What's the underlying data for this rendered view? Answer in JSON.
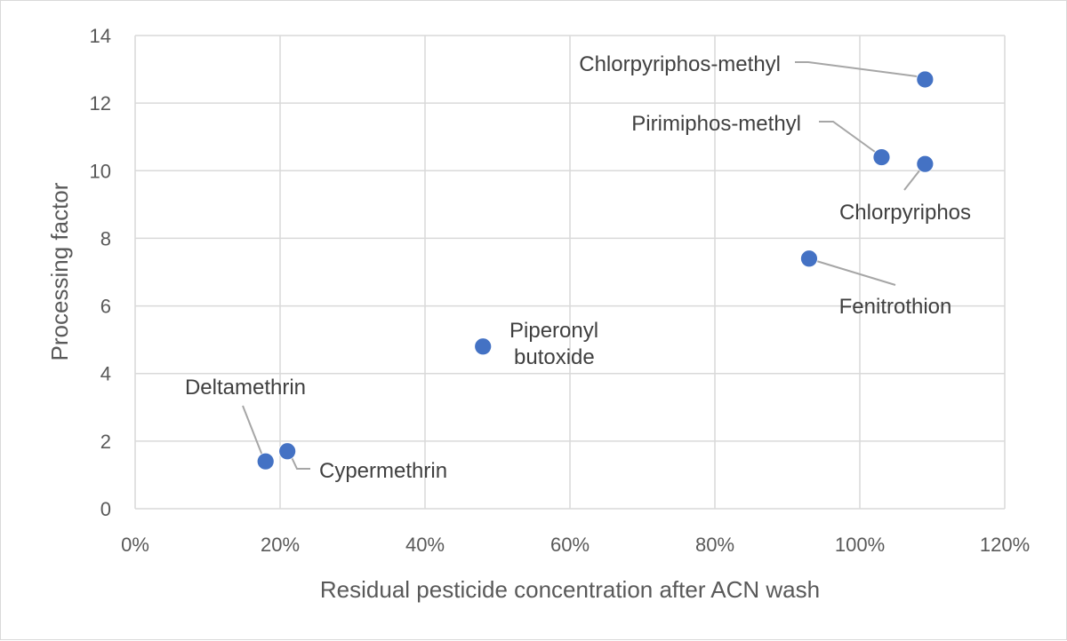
{
  "chart_data": {
    "type": "scatter",
    "xlabel": "Residual pesticide concentration after ACN wash",
    "ylabel": "Processing factor",
    "xlim": [
      0,
      1.2
    ],
    "ylim": [
      0,
      14
    ],
    "x_ticks": [
      0,
      0.2,
      0.4,
      0.6,
      0.8,
      1.0,
      1.2
    ],
    "x_tick_labels": [
      "0%",
      "20%",
      "40%",
      "60%",
      "80%",
      "100%",
      "120%"
    ],
    "y_ticks": [
      0,
      2,
      4,
      6,
      8,
      10,
      12,
      14
    ],
    "y_tick_labels": [
      "0",
      "2",
      "4",
      "6",
      "8",
      "10",
      "12",
      "14"
    ],
    "grid": "both",
    "legend": "none",
    "marker_color": "#4472c4",
    "points": [
      {
        "label": "Chlorpyriphos-methyl",
        "x": 1.09,
        "y": 12.7
      },
      {
        "label": "Pirimiphos-methyl",
        "x": 1.03,
        "y": 10.4
      },
      {
        "label": "Chlorpyriphos",
        "x": 1.09,
        "y": 10.2
      },
      {
        "label": "Fenitrothion",
        "x": 0.93,
        "y": 7.4
      },
      {
        "label": "Piperonyl butoxide",
        "x": 0.48,
        "y": 4.8
      },
      {
        "label": "Deltamethrin",
        "x": 0.18,
        "y": 1.4
      },
      {
        "label": "Cypermethrin",
        "x": 0.21,
        "y": 1.7
      }
    ]
  }
}
